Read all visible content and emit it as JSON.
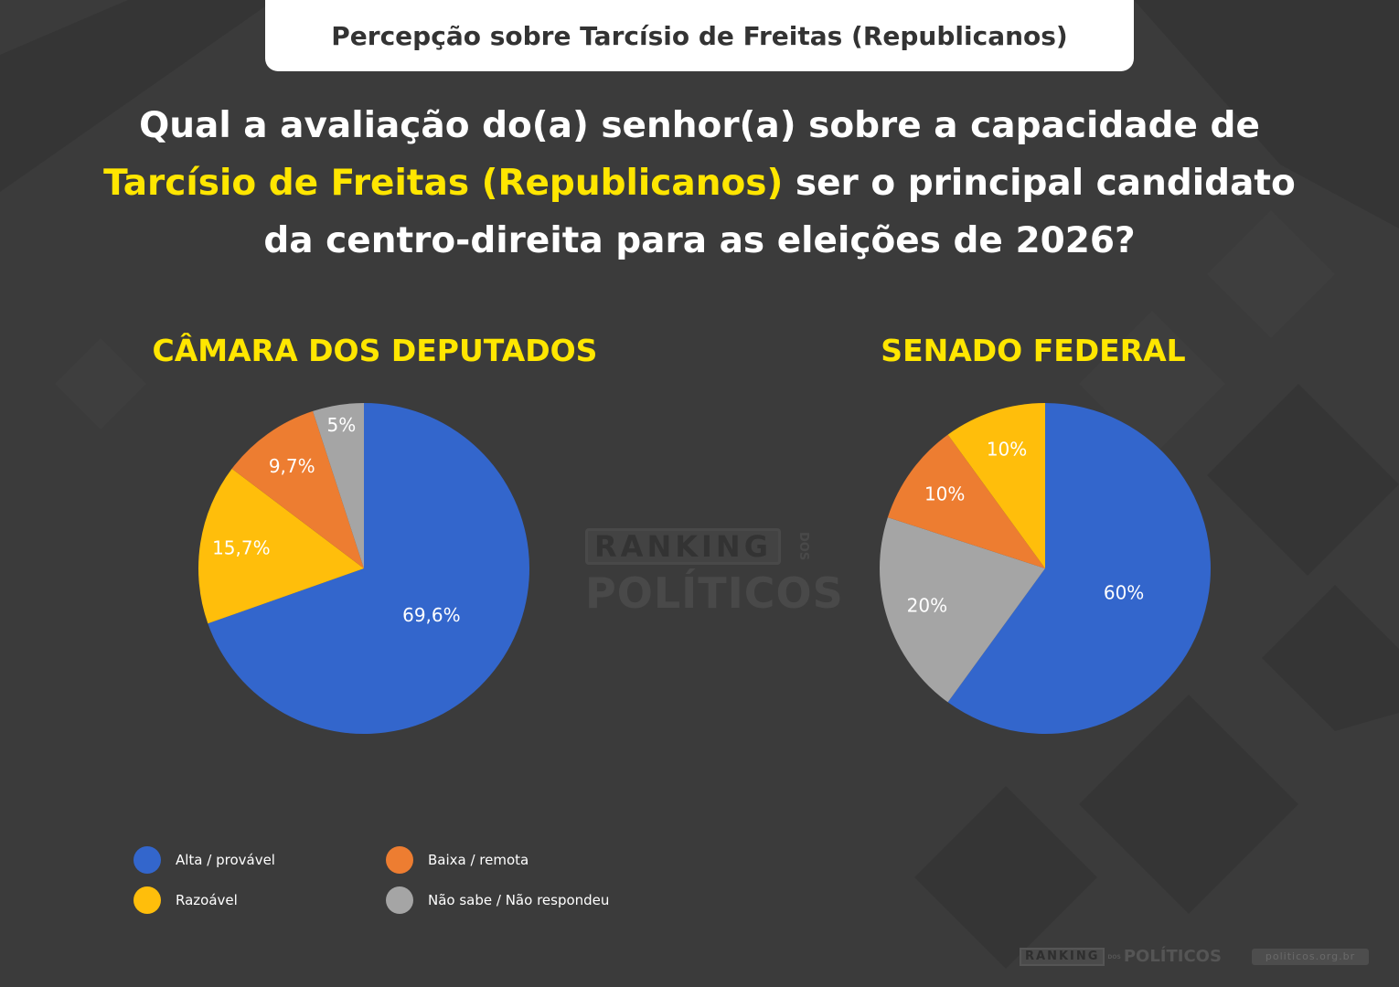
{
  "banner": {
    "title": "Percepção sobre Tarcísio de Freitas (Republicanos)"
  },
  "question": {
    "part1": "Qual a avaliação do(a) senhor(a) sobre a capacidade de",
    "highlight": "Tarcísio de Freitas (Republicanos)",
    "part2": "ser o principal candidato",
    "part3": "da centro-direita para as eleições de 2026?"
  },
  "colors": {
    "background": "#3b3b3b",
    "title_yellow": "#ffe600",
    "alta": "#3366cc",
    "razoavel": "#ffbe0b",
    "baixa": "#ed7d31",
    "nao_sabe": "#a5a5a5"
  },
  "chart_data": [
    {
      "type": "pie",
      "title": "CÂMARA DOS DEPUTADOS",
      "categories": [
        "Alta / provável",
        "Razoável",
        "Baixa / remota",
        "Não sabe / Não respondeu"
      ],
      "values": [
        69.6,
        15.7,
        9.7,
        5
      ],
      "labels": [
        "69,6%",
        "15,7%",
        "9,7%",
        "5%"
      ]
    },
    {
      "type": "pie",
      "title": "SENADO FEDERAL",
      "categories": [
        "Alta / provável",
        "Não sabe / Não respondeu",
        "Baixa / remota",
        "Razoável"
      ],
      "values": [
        60,
        20,
        10,
        10
      ],
      "labels": [
        "60%",
        "20%",
        "10%",
        "10%"
      ]
    }
  ],
  "legend": {
    "items": [
      {
        "label": "Alta / provável",
        "color": "#3366cc"
      },
      {
        "label": "Baixa / remota",
        "color": "#ed7d31"
      },
      {
        "label": "Razoável",
        "color": "#ffbe0b"
      },
      {
        "label": "Não sabe / Não respondeu",
        "color": "#a5a5a5"
      }
    ]
  },
  "watermark": {
    "ranking": "RANKING",
    "dos": "DOS",
    "politicos": "POLÍTICOS"
  },
  "footer": {
    "site": "politicos.org.br"
  }
}
